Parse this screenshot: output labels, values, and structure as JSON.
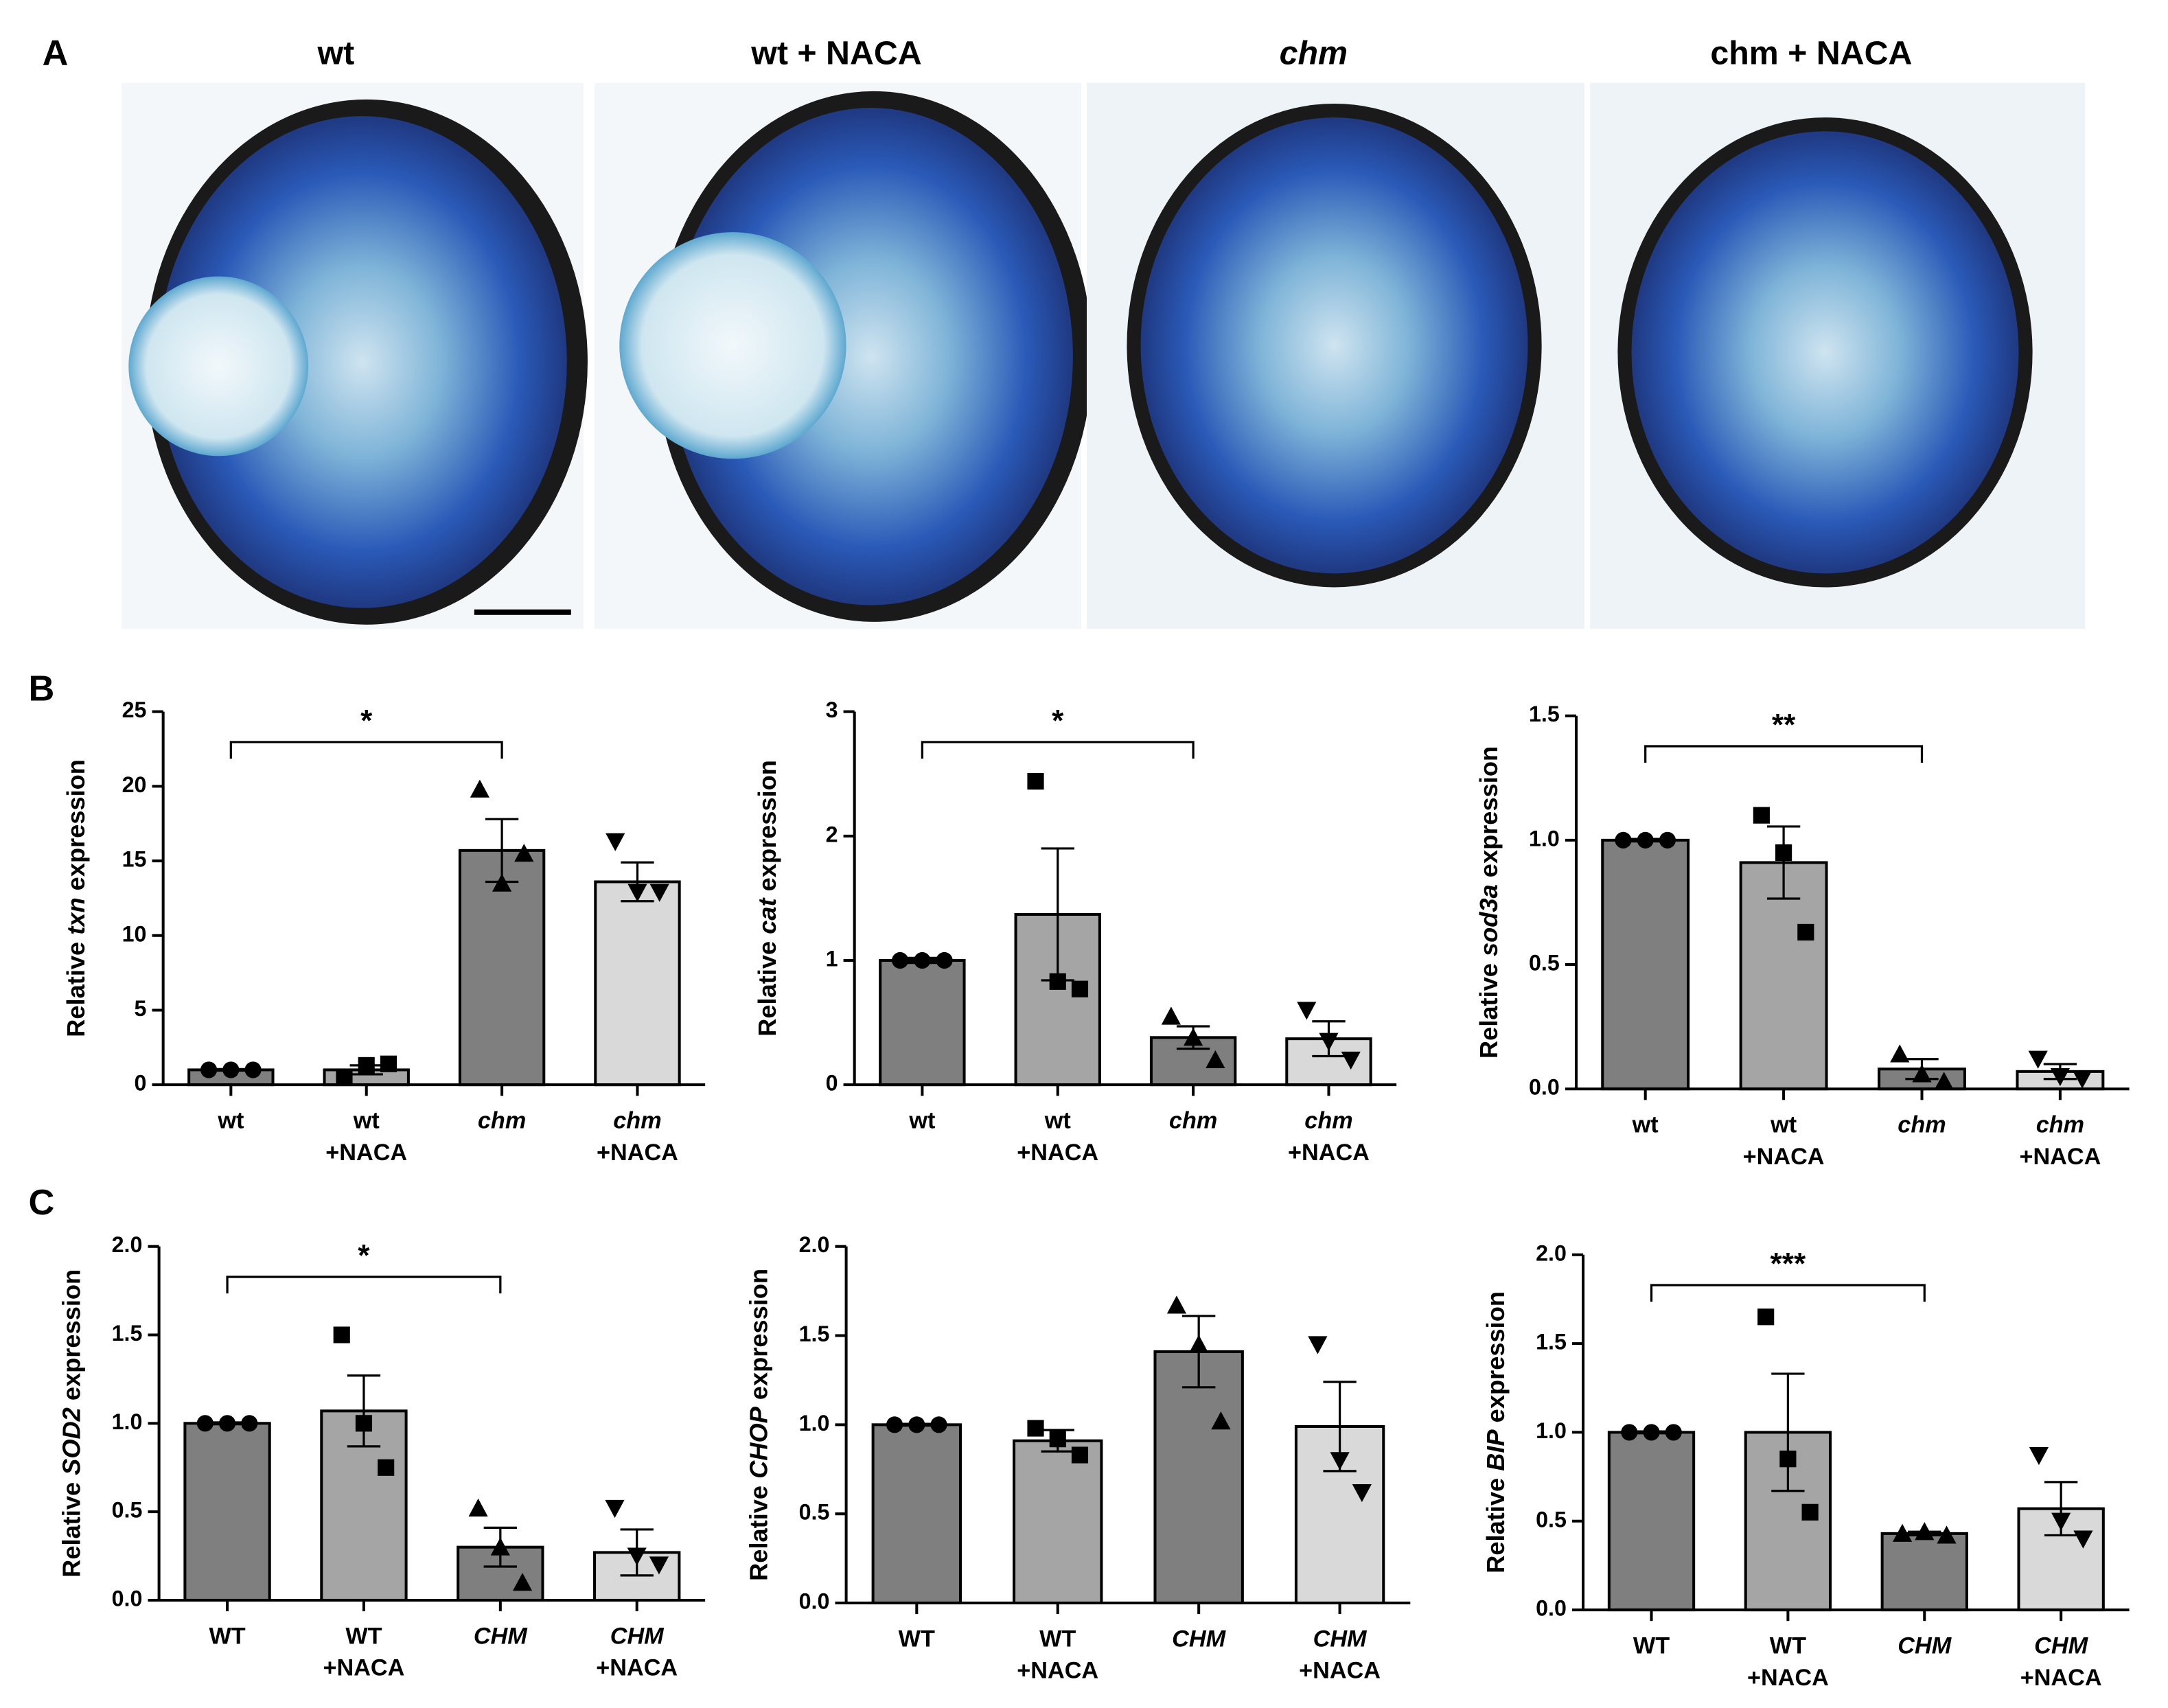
{
  "panel_labels": [
    "A",
    "B",
    "C"
  ],
  "images": [
    {
      "title": "wt"
    },
    {
      "title": "wt + NACA"
    },
    {
      "title": "chm"
    },
    {
      "title": "chm + NACA"
    }
  ],
  "chart_data": [
    {
      "type": "bar",
      "ylabel": {
        "prefix": "Relative",
        "gene": "txn",
        "suffix": "expression"
      },
      "categories": [
        [
          "wt"
        ],
        [
          "wt",
          "+NACA"
        ],
        [
          "chm"
        ],
        [
          "chm",
          "+NACA"
        ]
      ],
      "values": [
        1.0,
        1.0,
        15.7,
        13.6
      ],
      "errors": [
        0.05,
        0.3,
        2.1,
        1.3
      ],
      "points": [
        [
          1,
          1,
          1
        ],
        [
          0.5,
          1.3,
          1.4
        ],
        [
          19.8,
          13.5,
          15.5
        ],
        [
          16.3,
          12.9,
          12.9
        ]
      ],
      "colors": [
        "#7f7f7f",
        "#a5a5a5",
        "#7f7f7f",
        "#d9d9d9"
      ],
      "markers": [
        "circle",
        "square",
        "triangle-up",
        "triangle-down"
      ],
      "ylim": [
        0,
        25
      ],
      "yticks": [
        0,
        5,
        10,
        15,
        20,
        25
      ],
      "annotation": {
        "text": "*",
        "from": 0,
        "to": 2
      }
    },
    {
      "type": "bar",
      "ylabel": {
        "prefix": "Relative",
        "gene": "cat",
        "suffix": "expression"
      },
      "categories": [
        [
          "wt"
        ],
        [
          "wt",
          "+NACA"
        ],
        [
          "chm"
        ],
        [
          "chm",
          "+NACA"
        ]
      ],
      "values": [
        1.0,
        1.37,
        0.38,
        0.37
      ],
      "errors": [
        0.02,
        0.53,
        0.09,
        0.14
      ],
      "points": [
        [
          1,
          1,
          1
        ],
        [
          2.44,
          0.83,
          0.77
        ],
        [
          0.55,
          0.38,
          0.2
        ],
        [
          0.6,
          0.35,
          0.2
        ]
      ],
      "colors": [
        "#7f7f7f",
        "#a5a5a5",
        "#7f7f7f",
        "#d9d9d9"
      ],
      "markers": [
        "circle",
        "square",
        "triangle-up",
        "triangle-down"
      ],
      "ylim": [
        0,
        3
      ],
      "yticks": [
        0,
        1,
        2,
        3
      ],
      "annotation": {
        "text": "*",
        "from": 0,
        "to": 2
      }
    },
    {
      "type": "bar",
      "ylabel": {
        "prefix": "Relative",
        "gene": "sod3a",
        "suffix": "expression"
      },
      "categories": [
        [
          "wt"
        ],
        [
          "wt",
          "+NACA"
        ],
        [
          "chm"
        ],
        [
          "chm",
          "+NACA"
        ]
      ],
      "values": [
        1.0,
        0.91,
        0.08,
        0.07
      ],
      "errors": [
        0.005,
        0.145,
        0.04,
        0.03
      ],
      "points": [
        [
          1,
          1,
          1
        ],
        [
          1.1,
          0.95,
          0.63
        ],
        [
          0.14,
          0.06,
          0.03
        ],
        [
          0.12,
          0.05,
          0.04
        ]
      ],
      "colors": [
        "#7f7f7f",
        "#a5a5a5",
        "#7f7f7f",
        "#d9d9d9"
      ],
      "markers": [
        "circle",
        "square",
        "triangle-up",
        "triangle-down"
      ],
      "ylim": [
        0,
        1.5
      ],
      "yticks": [
        {
          "value": 0,
          "label": "0.0"
        },
        0.5,
        {
          "value": 1,
          "label": "1.0"
        },
        1.5
      ],
      "annotation": {
        "text": "**",
        "from": 0,
        "to": 2
      }
    },
    {
      "type": "bar",
      "ylabel": {
        "prefix": "Relative",
        "gene": "SOD2",
        "suffix": "expression"
      },
      "categories": [
        [
          "WT"
        ],
        [
          "WT",
          "+NACA"
        ],
        [
          "CHM"
        ],
        [
          "CHM",
          "+NACA"
        ]
      ],
      "values": [
        1.0,
        1.07,
        0.3,
        0.27
      ],
      "errors": [
        0.005,
        0.2,
        0.11,
        0.13
      ],
      "points": [
        [
          1,
          1,
          1
        ],
        [
          1.5,
          1.0,
          0.75
        ],
        [
          0.52,
          0.3,
          0.1
        ],
        [
          0.52,
          0.25,
          0.2
        ]
      ],
      "colors": [
        "#7f7f7f",
        "#a5a5a5",
        "#7f7f7f",
        "#d9d9d9"
      ],
      "markers": [
        "circle",
        "square",
        "triangle-up",
        "triangle-down"
      ],
      "ylim": [
        0,
        2
      ],
      "yticks": [
        {
          "value": 0,
          "label": "0.0"
        },
        0.5,
        {
          "value": 1,
          "label": "1.0"
        },
        1.5,
        {
          "value": 2,
          "label": "2.0"
        }
      ],
      "annotation": {
        "text": "*",
        "from": 0,
        "to": 2
      }
    },
    {
      "type": "bar",
      "ylabel": {
        "prefix": "Relative",
        "gene": "CHOP",
        "suffix": "expression"
      },
      "categories": [
        [
          "WT"
        ],
        [
          "WT",
          "+NACA"
        ],
        [
          "CHM"
        ],
        [
          "CHM",
          "+NACA"
        ]
      ],
      "values": [
        1.0,
        0.91,
        1.41,
        0.99
      ],
      "errors": [
        0.005,
        0.06,
        0.2,
        0.25
      ],
      "points": [
        [
          1,
          1,
          1
        ],
        [
          0.98,
          0.92,
          0.83
        ],
        [
          1.67,
          1.45,
          1.02
        ],
        [
          1.45,
          0.8,
          0.62
        ]
      ],
      "colors": [
        "#7f7f7f",
        "#a5a5a5",
        "#7f7f7f",
        "#d9d9d9"
      ],
      "markers": [
        "circle",
        "square",
        "triangle-up",
        "triangle-down"
      ],
      "ylim": [
        0,
        2
      ],
      "yticks": [
        {
          "value": 0,
          "label": "0.0"
        },
        0.5,
        {
          "value": 1,
          "label": "1.0"
        },
        1.5,
        {
          "value": 2,
          "label": "2.0"
        }
      ]
    },
    {
      "type": "bar",
      "ylabel": {
        "prefix": "Relative",
        "gene": "BIP",
        "suffix": "expression"
      },
      "categories": [
        [
          "WT"
        ],
        [
          "WT",
          "+NACA"
        ],
        [
          "CHM"
        ],
        [
          "CHM",
          "+NACA"
        ]
      ],
      "values": [
        1.0,
        1.0,
        0.43,
        0.57
      ],
      "errors": [
        0.005,
        0.33,
        0.01,
        0.15
      ],
      "points": [
        [
          1,
          1,
          1
        ],
        [
          1.65,
          0.85,
          0.55
        ],
        [
          0.43,
          0.44,
          0.42
        ],
        [
          0.87,
          0.5,
          0.4
        ]
      ],
      "colors": [
        "#7f7f7f",
        "#a5a5a5",
        "#7f7f7f",
        "#d9d9d9"
      ],
      "markers": [
        "circle",
        "square",
        "triangle-up",
        "triangle-down"
      ],
      "ylim": [
        0,
        2
      ],
      "yticks": [
        {
          "value": 0,
          "label": "0.0"
        },
        0.5,
        {
          "value": 1,
          "label": "1.0"
        },
        1.5,
        {
          "value": 2,
          "label": "2.0"
        }
      ],
      "annotation": {
        "text": "***",
        "from": 0,
        "to": 2
      }
    }
  ]
}
